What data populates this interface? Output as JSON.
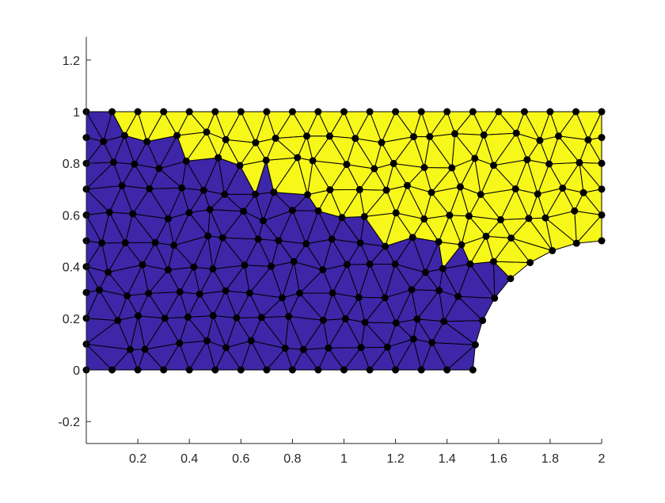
{
  "chart_data": {
    "type": "mesh",
    "title": "",
    "xlabel": "",
    "ylabel": "",
    "xlim": [
      0,
      2
    ],
    "ylim": [
      -0.285,
      1.29
    ],
    "grid": false,
    "legend": null,
    "x_ticks": [
      {
        "value": 0.2,
        "label": "0.2"
      },
      {
        "value": 0.4,
        "label": "0.4"
      },
      {
        "value": 0.6,
        "label": "0.6"
      },
      {
        "value": 0.8,
        "label": "0.8"
      },
      {
        "value": 1.0,
        "label": "1"
      },
      {
        "value": 1.2,
        "label": "1.2"
      },
      {
        "value": 1.4,
        "label": "1.4"
      },
      {
        "value": 1.6,
        "label": "1.6"
      },
      {
        "value": 1.8,
        "label": "1.8"
      },
      {
        "value": 2.0,
        "label": "2"
      }
    ],
    "y_ticks": [
      {
        "value": -0.2,
        "label": "-0.2"
      },
      {
        "value": 0.0,
        "label": "0"
      },
      {
        "value": 0.2,
        "label": "0.2"
      },
      {
        "value": 0.4,
        "label": "0.4"
      },
      {
        "value": 0.6,
        "label": "0.6"
      },
      {
        "value": 0.8,
        "label": "0.8"
      },
      {
        "value": 1.0,
        "label": "1"
      },
      {
        "value": 1.2,
        "label": "1.2"
      }
    ],
    "domain": {
      "description": "Rectangle [0,2]x[0,1] with quarter-circle hole centered at (2,0), radius 0.5",
      "rect": [
        0,
        0,
        2,
        1
      ],
      "hole_center": [
        2,
        0
      ],
      "hole_radius": 0.5
    },
    "regions": [
      {
        "name": "upper-region",
        "color": "#f7f71a",
        "description": "Above line from (0,1) to (1.65,0.36)"
      },
      {
        "name": "lower-region",
        "color": "#3e26a8",
        "description": "Below line from (0,1) to (1.65,0.36)"
      }
    ],
    "interface_line": [
      [
        0,
        1
      ],
      [
        1.65,
        0.36
      ]
    ],
    "mesh_spacing": 0.1,
    "node_color": "#000000",
    "edge_color": "#000000"
  },
  "colors": {
    "axis": "#262626",
    "upper": "#f7f71a",
    "lower": "#3e26a8"
  }
}
